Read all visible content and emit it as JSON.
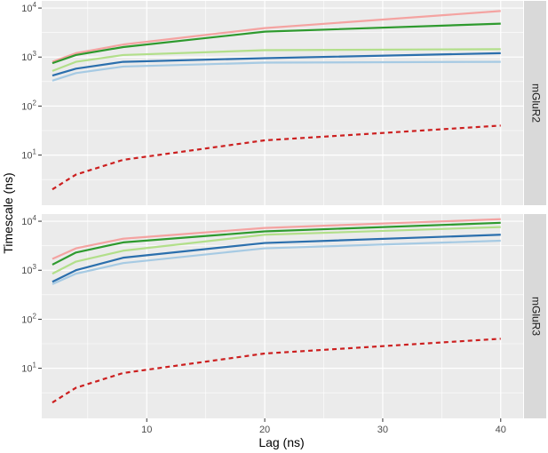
{
  "chart_data": {
    "type": "line",
    "xlabel": "Lag (ns)",
    "ylabel": "Timescale (ns)",
    "x_ticks": [
      10,
      20,
      30,
      40
    ],
    "x_tick_labels": [
      "10",
      "20",
      "30",
      "40"
    ],
    "xlim": [
      1.1,
      41.9
    ],
    "y_scale": "log10",
    "y_ticks": [
      10,
      100,
      1000,
      10000
    ],
    "y_tick_labels": [
      {
        "base": "10",
        "exp": "1"
      },
      {
        "base": "10",
        "exp": "2"
      },
      {
        "base": "10",
        "exp": "3"
      },
      {
        "base": "10",
        "exp": "4"
      }
    ],
    "ylim": [
      0.95,
      14000
    ],
    "grid": true,
    "legend": "none",
    "facets": [
      {
        "label": "mGluR2",
        "series": [
          {
            "color": "#f4a3a1",
            "dash": "solid",
            "x": [
              2,
              4,
              8,
              20,
              40
            ],
            "y": [
              800,
              1200,
              1800,
              3900,
              8700
            ]
          },
          {
            "color": "#2e9a2e",
            "dash": "solid",
            "x": [
              2,
              4,
              8,
              20,
              40
            ],
            "y": [
              750,
              1100,
              1600,
              3300,
              4800
            ]
          },
          {
            "color": "#b2df8a",
            "dash": "solid",
            "x": [
              2,
              4,
              8,
              20,
              40
            ],
            "y": [
              520,
              800,
              1100,
              1380,
              1450
            ]
          },
          {
            "color": "#2b6fad",
            "dash": "solid",
            "x": [
              2,
              4,
              8,
              20,
              40
            ],
            "y": [
              420,
              580,
              800,
              950,
              1200
            ]
          },
          {
            "color": "#a6cae3",
            "dash": "solid",
            "x": [
              2,
              4,
              8,
              20,
              40
            ],
            "y": [
              330,
              470,
              640,
              770,
              800
            ]
          },
          {
            "color": "#cc1f1f",
            "dash": "dashed",
            "x": [
              2,
              4,
              8,
              20,
              40
            ],
            "y": [
              2,
              4,
              8,
              20,
              40
            ]
          }
        ]
      },
      {
        "label": "mGluR3",
        "series": [
          {
            "color": "#f4a3a1",
            "dash": "solid",
            "x": [
              2,
              4,
              8,
              20,
              40
            ],
            "y": [
              1700,
              2800,
              4400,
              7300,
              11000
            ]
          },
          {
            "color": "#2e9a2e",
            "dash": "solid",
            "x": [
              2,
              4,
              8,
              20,
              40
            ],
            "y": [
              1300,
              2300,
              3700,
              6200,
              9300
            ]
          },
          {
            "color": "#b2df8a",
            "dash": "solid",
            "x": [
              2,
              4,
              8,
              20,
              40
            ],
            "y": [
              850,
              1500,
              2500,
              5300,
              7600
            ]
          },
          {
            "color": "#2b6fad",
            "dash": "solid",
            "x": [
              2,
              4,
              8,
              20,
              40
            ],
            "y": [
              580,
              1000,
              1800,
              3600,
              5300
            ]
          },
          {
            "color": "#a6cae3",
            "dash": "solid",
            "x": [
              2,
              4,
              8,
              20,
              40
            ],
            "y": [
              520,
              850,
              1400,
              2800,
              4000
            ]
          },
          {
            "color": "#cc1f1f",
            "dash": "dashed",
            "x": [
              2,
              4,
              8,
              20,
              40
            ],
            "y": [
              2,
              4,
              8,
              20,
              40
            ]
          }
        ]
      }
    ]
  },
  "style": {
    "panel_background": "#ebebeb",
    "grid_major": "#ffffff",
    "strip_background": "#d9d9d9",
    "tick_text": "#4d4d4d"
  }
}
